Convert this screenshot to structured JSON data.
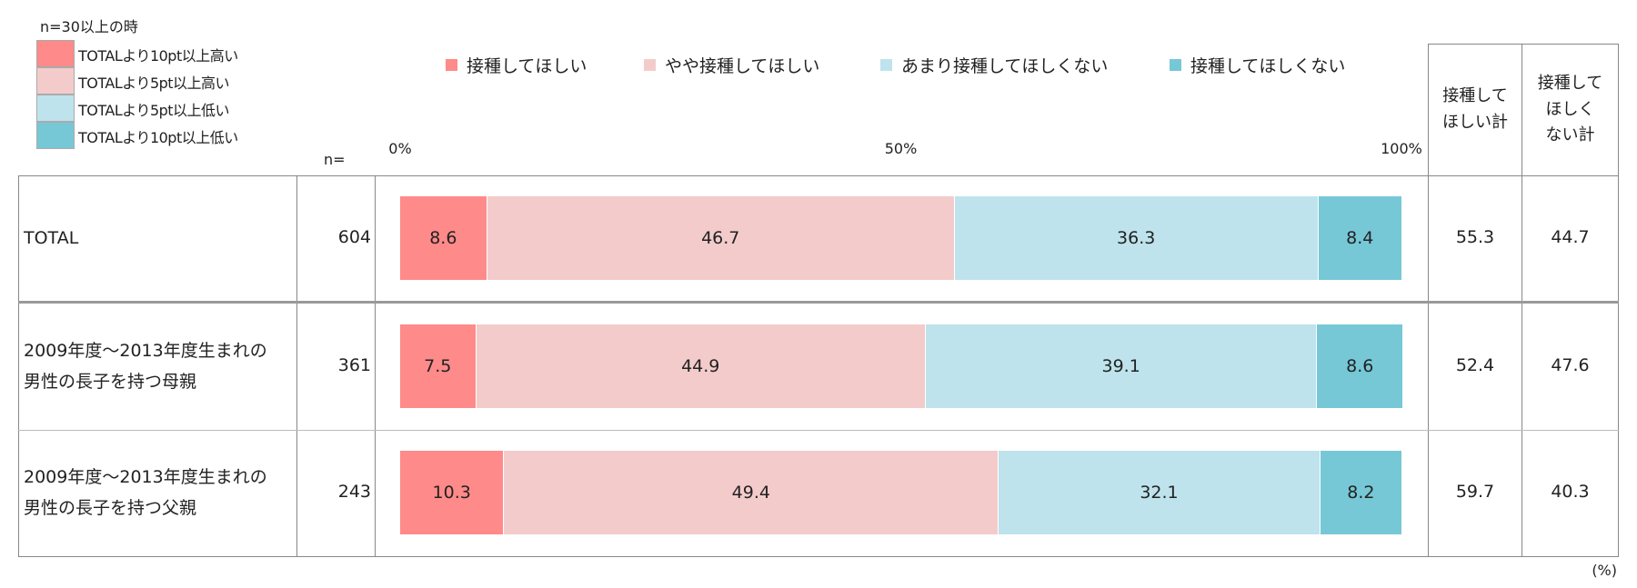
{
  "legend_note": {
    "title": "n=30以上の時",
    "items": [
      {
        "label": "TOTALより10pt以上高い",
        "color": "#FF8A8A"
      },
      {
        "label": "TOTALより5pt以上高い",
        "color": "#F4CBCB"
      },
      {
        "label": "TOTALより5pt以上低い",
        "color": "#BEE3EC"
      },
      {
        "label": "TOTALより10pt以上低い",
        "color": "#77C8D6"
      }
    ]
  },
  "n_header": "n=",
  "totals_header": {
    "positive": "接種して\nほしい計",
    "negative": "接種して\nほしく\nない計"
  },
  "unit": "(%)",
  "chart_data": {
    "type": "bar",
    "orientation": "horizontal-stacked-100",
    "xlim": [
      0,
      100
    ],
    "ticks": [
      {
        "value": 0,
        "label": "0%"
      },
      {
        "value": 50,
        "label": "50%"
      },
      {
        "value": 100,
        "label": "100%"
      }
    ],
    "series": [
      {
        "name": "接種してほしい",
        "color": "#FF8A8A",
        "values": [
          8.6,
          7.5,
          10.3
        ]
      },
      {
        "name": "やや接種してほしい",
        "color": "#F4CBCB",
        "values": [
          46.7,
          44.9,
          49.4
        ]
      },
      {
        "name": "あまり接種してほしくない",
        "color": "#BEE3EC",
        "values": [
          36.3,
          39.1,
          32.1
        ]
      },
      {
        "name": "接種してほしくない",
        "color": "#77C8D6",
        "values": [
          8.4,
          8.6,
          8.2
        ]
      }
    ],
    "rows": [
      {
        "label": "TOTAL",
        "n": "604",
        "positive_total": "55.3",
        "negative_total": "44.7"
      },
      {
        "label": "2009年度～2013年度生まれの\n男性の長子を持つ母親",
        "n": "361",
        "positive_total": "52.4",
        "negative_total": "47.6"
      },
      {
        "label": "2009年度～2013年度生まれの\n男性の長子を持つ父親",
        "n": "243",
        "positive_total": "59.7",
        "negative_total": "40.3"
      }
    ],
    "legend_position": "top"
  }
}
